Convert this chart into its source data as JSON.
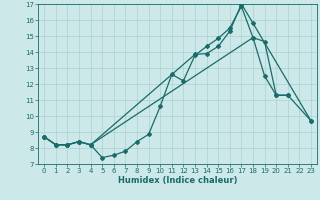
{
  "xlabel": "Humidex (Indice chaleur)",
  "xlim": [
    -0.5,
    23.5
  ],
  "ylim": [
    7,
    17
  ],
  "yticks": [
    7,
    8,
    9,
    10,
    11,
    12,
    13,
    14,
    15,
    16,
    17
  ],
  "xticks": [
    0,
    1,
    2,
    3,
    4,
    5,
    6,
    7,
    8,
    9,
    10,
    11,
    12,
    13,
    14,
    15,
    16,
    17,
    18,
    19,
    20,
    21,
    22,
    23
  ],
  "background_color": "#cce8e8",
  "line_color": "#1a6b6b",
  "grid_color": "#aad0d0",
  "line1_x": [
    0,
    1,
    2,
    3,
    4,
    5,
    6,
    7,
    8,
    9,
    10,
    11,
    12,
    13,
    14,
    15,
    16,
    17,
    18,
    19,
    20,
    21
  ],
  "line1_y": [
    8.7,
    8.2,
    8.2,
    8.4,
    8.2,
    7.4,
    7.55,
    7.8,
    8.4,
    8.85,
    10.6,
    12.6,
    12.2,
    13.8,
    14.35,
    14.85,
    15.5,
    16.85,
    14.9,
    12.5,
    11.3,
    11.3
  ],
  "line2_x": [
    0,
    1,
    2,
    3,
    4,
    13,
    14,
    15,
    16,
    17,
    18,
    23
  ],
  "line2_y": [
    8.7,
    8.2,
    8.2,
    8.4,
    8.2,
    13.85,
    13.9,
    14.35,
    15.3,
    17.0,
    15.8,
    9.7
  ],
  "line3_x": [
    0,
    1,
    2,
    3,
    4,
    18,
    19,
    20,
    21,
    23
  ],
  "line3_y": [
    8.7,
    8.2,
    8.2,
    8.4,
    8.2,
    14.9,
    14.65,
    11.3,
    11.3,
    9.7
  ]
}
